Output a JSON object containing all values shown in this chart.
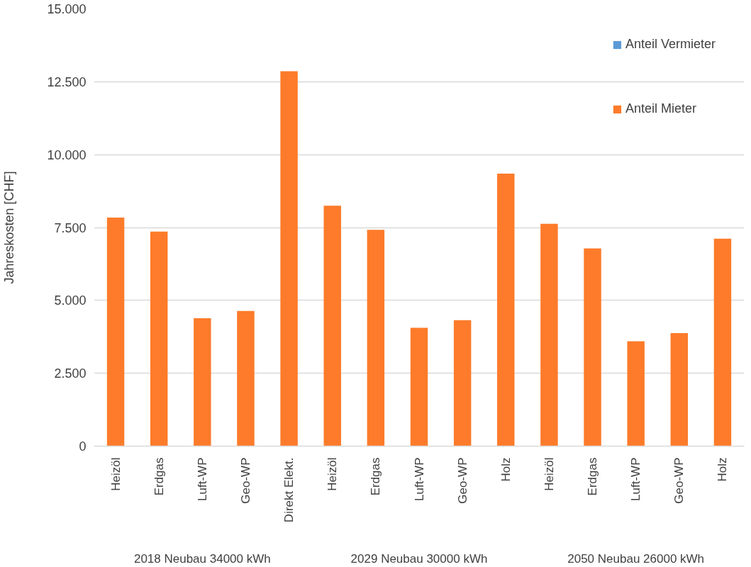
{
  "chart_data": {
    "type": "bar",
    "ylabel": "Jahreskosten [CHF]",
    "stacked": true,
    "categories": [
      "Heizöl",
      "Erdgas",
      "Luft-WP",
      "Geo-WP",
      "Direkt Elekt.",
      "Heizöl",
      "Erdgas",
      "Luft-WP",
      "Geo-WP",
      "Holz",
      "Heizöl",
      "Erdgas",
      "Luft-WP",
      "Geo-WP",
      "Holz"
    ],
    "annotations": [
      "2018 Neubau 34000 kWh",
      "2029 Neubau 30000 kWh",
      "2050 Neubau 26000 kWh"
    ],
    "series": [
      {
        "name": "Anteil Mieter",
        "color": "#fd7b2a",
        "values": [
          7840,
          7360,
          4390,
          4640,
          12860,
          8250,
          7420,
          4060,
          4320,
          9350,
          7630,
          6780,
          3600,
          3880,
          7120
        ]
      },
      {
        "name": "Anteil Vermieter",
        "color": "#5b9bd5",
        "values": [
          0,
          0,
          0,
          0,
          0,
          0,
          0,
          0,
          0,
          0,
          0,
          0,
          0,
          0,
          0
        ]
      }
    ],
    "ylim": [
      0,
      15000
    ],
    "yticks": [
      0,
      {
        "value": 2500,
        "label": "2.500"
      },
      {
        "value": 5000,
        "label": "5.000"
      },
      {
        "value": 7500,
        "label": "7.500"
      },
      {
        "value": 10000,
        "label": "10.000"
      },
      {
        "value": 12500,
        "label": "12.500"
      },
      {
        "value": 15000,
        "label": "15.000"
      }
    ],
    "grid": "y",
    "legend": "top right"
  }
}
